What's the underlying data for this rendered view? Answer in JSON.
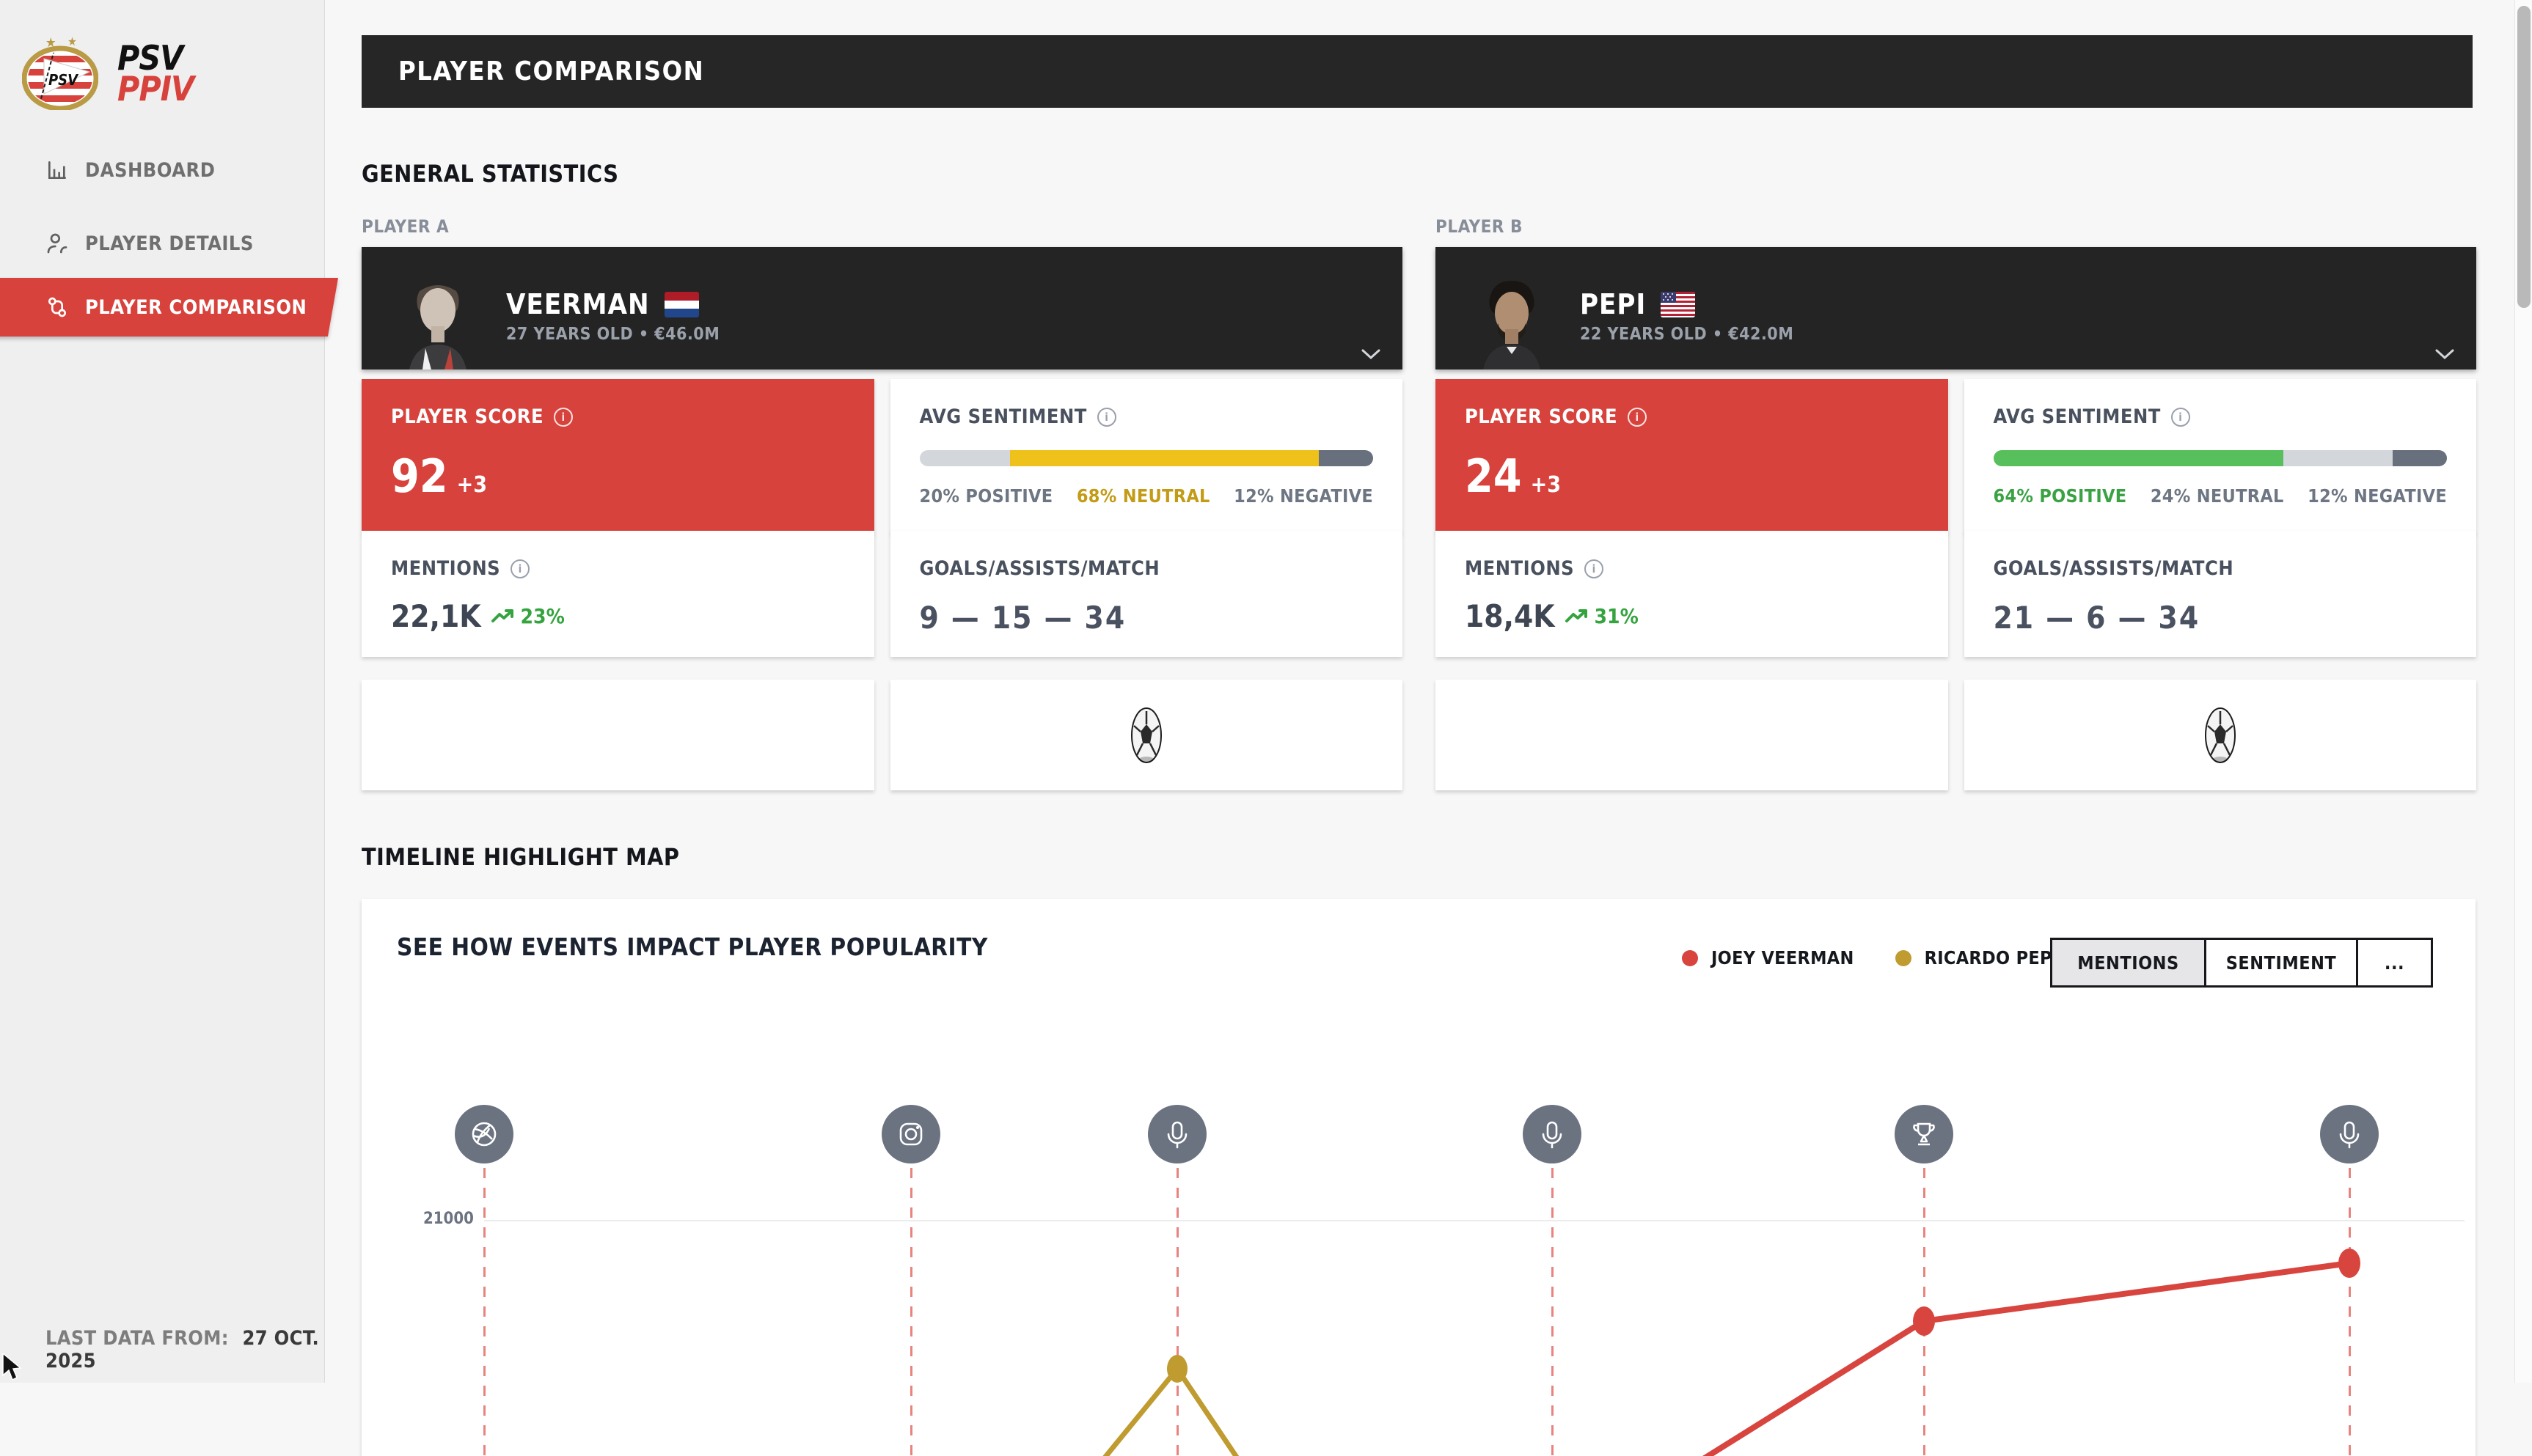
{
  "sidebar": {
    "brand": {
      "word_top": "PSV",
      "word_bottom": "PPIV",
      "crest_text": "PSV"
    },
    "items": [
      {
        "label": "DASHBOARD",
        "icon": "bar-chart-icon",
        "active": false
      },
      {
        "label": "PLAYER DETAILS",
        "icon": "user-icon",
        "active": false
      },
      {
        "label": "PLAYER COMPARISON",
        "icon": "compare-users-icon",
        "active": true
      }
    ],
    "footer": {
      "label": "LAST DATA FROM:",
      "value": "27 OCT. 2025"
    }
  },
  "header": {
    "title": "PLAYER COMPARISON"
  },
  "sections": {
    "general": "GENERAL STATISTICS",
    "timeline": "TIMELINE HIGHLIGHT MAP"
  },
  "colors": {
    "accent_red": "#d8423c",
    "dark": "#262626",
    "green": "#35a33f",
    "gold": "#bf9b30",
    "slate": "#6b7280"
  },
  "players": [
    {
      "slot": "PLAYER A",
      "name": "VEERMAN",
      "flag": "flag-netherlands",
      "meta": "27 YEARS OLD • €46.0M",
      "score": {
        "label": "PLAYER SCORE",
        "value": "92",
        "delta": "+3"
      },
      "sentiment": {
        "label": "AVG SENTIMENT",
        "positive": 20,
        "neutral": 68,
        "negative": 12,
        "positive_label": "20% POSITIVE",
        "neutral_label": "68% NEUTRAL",
        "negative_label": "12% NEGATIVE",
        "positive_color": "#d3d7dc",
        "neutral_color": "#eec21a",
        "negative_color": "#68707e",
        "positive_text_color": "#6e7683",
        "neutral_text_color": "#c49b16",
        "negative_text_color": "#6e7683"
      },
      "mentions": {
        "label": "MENTIONS",
        "value": "22,1K",
        "trend": "23%"
      },
      "goals": {
        "label": "GOALS/ASSISTS/MATCH",
        "value": "9 — 15 — 34"
      }
    },
    {
      "slot": "PLAYER B",
      "name": "PEPI",
      "flag": "flag-usa",
      "meta": "22 YEARS OLD • €42.0M",
      "score": {
        "label": "PLAYER SCORE",
        "value": "24",
        "delta": "+3"
      },
      "sentiment": {
        "label": "AVG SENTIMENT",
        "positive": 64,
        "neutral": 24,
        "negative": 12,
        "positive_label": "64% POSITIVE",
        "neutral_label": "24% NEUTRAL",
        "negative_label": "12% NEGATIVE",
        "positive_color": "#57c05c",
        "neutral_color": "#d3d7dc",
        "negative_color": "#68707e",
        "positive_text_color": "#3ba244",
        "neutral_text_color": "#6e7683",
        "negative_text_color": "#6e7683"
      },
      "mentions": {
        "label": "MENTIONS",
        "value": "18,4K",
        "trend": "31%"
      },
      "goals": {
        "label": "GOALS/ASSISTS/MATCH",
        "value": "21 — 6 — 34"
      }
    }
  ],
  "timeline": {
    "title": "SEE HOW EVENTS IMPACT PLAYER POPULARITY",
    "legend": [
      {
        "label": "JOEY VEERMAN",
        "color": "#d8453f"
      },
      {
        "label": "RICARDO PEPI",
        "color": "#bf9b30"
      }
    ],
    "tabs": [
      {
        "label": "MENTIONS",
        "active": true
      },
      {
        "label": "SENTIMENT",
        "active": false
      },
      {
        "label": "...",
        "active": false
      }
    ],
    "chart_data": {
      "type": "line",
      "title": "SEE HOW EVENTS IMPACT PLAYER POPULARITY",
      "y_ticks": [
        21000
      ],
      "grid": true,
      "legend_position": "top-right",
      "event_markers": [
        "football",
        "instagram",
        "microphone",
        "microphone",
        "trophy",
        "microphone"
      ],
      "series": [
        {
          "name": "JOEY VEERMAN",
          "color": "#d8453f",
          "visible_points": [
            {
              "marker_index": 4,
              "approx_value": 15000
            },
            {
              "marker_index": 5,
              "approx_value": 19500
            }
          ]
        },
        {
          "name": "RICARDO PEPI",
          "color": "#bf9b30",
          "visible_points": [
            {
              "marker_index": 2,
              "approx_value": 1500
            }
          ]
        }
      ]
    }
  }
}
